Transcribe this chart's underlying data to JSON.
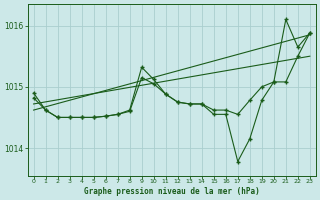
{
  "background_color": "#cce8e8",
  "grid_color": "#aacece",
  "line_color": "#1a5c1a",
  "title": "Graphe pression niveau de la mer (hPa)",
  "xlim": [
    -0.5,
    23.5
  ],
  "ylim": [
    1013.55,
    1016.35
  ],
  "yticks": [
    1014,
    1015,
    1016
  ],
  "xticks": [
    0,
    1,
    2,
    3,
    4,
    5,
    6,
    7,
    8,
    9,
    10,
    11,
    12,
    13,
    14,
    15,
    16,
    17,
    18,
    19,
    20,
    21,
    22,
    23
  ],
  "trend1": {
    "x": [
      0,
      23
    ],
    "y": [
      1014.72,
      1015.5
    ]
  },
  "trend2": {
    "x": [
      0,
      23
    ],
    "y": [
      1014.62,
      1015.85
    ]
  },
  "series_jagged1": {
    "x": [
      0,
      1,
      2,
      3,
      4,
      5,
      6,
      7,
      8,
      9,
      10,
      11,
      12,
      13,
      14,
      15,
      16,
      17,
      18,
      19,
      20,
      21,
      22,
      23
    ],
    "y": [
      1014.9,
      1014.62,
      1014.5,
      1014.5,
      1014.5,
      1014.5,
      1014.52,
      1014.55,
      1014.6,
      1015.15,
      1015.05,
      1014.88,
      1014.75,
      1014.72,
      1014.72,
      1014.62,
      1014.62,
      1014.55,
      1014.78,
      1015.0,
      1015.08,
      1015.08,
      1015.5,
      1015.88
    ]
  },
  "series_jagged2": {
    "x": [
      0,
      1,
      2,
      3,
      4,
      5,
      6,
      7,
      8,
      9,
      10,
      11,
      12,
      13,
      14,
      15,
      16,
      17,
      18,
      19,
      20,
      21,
      22,
      23
    ],
    "y": [
      1014.82,
      1014.62,
      1014.5,
      1014.5,
      1014.5,
      1014.5,
      1014.52,
      1014.55,
      1014.62,
      1015.32,
      1015.12,
      1014.88,
      1014.75,
      1014.72,
      1014.72,
      1014.55,
      1014.55,
      1013.78,
      1014.15,
      1014.78,
      1015.08,
      1016.1,
      1015.65,
      1015.88
    ]
  }
}
